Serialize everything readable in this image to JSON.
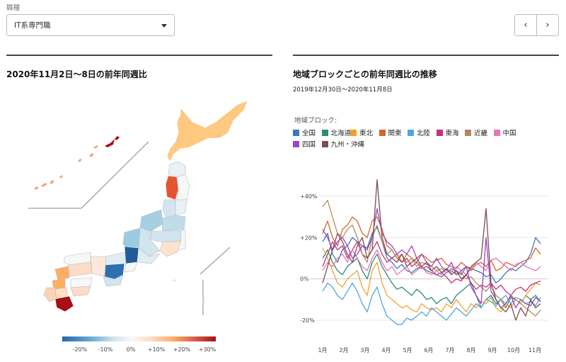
{
  "filter": {
    "label": "職種",
    "selected": "IT系専門職"
  },
  "pager": {
    "prev": "‹",
    "next": "›"
  },
  "map_panel": {
    "title": "2020年11月2日〜8日の前年同週比",
    "colorbar": {
      "ticks": [
        "-20%",
        "-10%",
        "0%",
        "+10%",
        "+20%",
        "+30%"
      ],
      "colors": [
        "#2166ac",
        "#67a9cf",
        "#d1e5f0",
        "#f7f7f7",
        "#fddbc7",
        "#fdae61",
        "#d6604d",
        "#a50f15"
      ]
    }
  },
  "chart_panel": {
    "title": "地域ブロックごとの前年同週比の推移",
    "subtitle": "2019年12月30日〜2020年11月8日",
    "legend_title": "地域ブロック:"
  },
  "chart_data": {
    "type": "line",
    "title": "地域ブロックごとの前年同週比の推移",
    "subtitle": "2019年12月30日〜2020年11月8日",
    "x_tick_labels": [
      "1月",
      "2月",
      "3月",
      "4月",
      "5月",
      "6月",
      "7月",
      "8月",
      "9月",
      "10月",
      "11月"
    ],
    "y_tick_labels": [
      "+40%",
      "+20%",
      "0%",
      "-20%"
    ],
    "y_ticks": [
      40,
      20,
      0,
      -20
    ],
    "ylim": [
      -30,
      50
    ],
    "grid": true,
    "legend_position": "top",
    "x_unit": "week index (0 = 2019-12-30, 44 = 2020-11-02)",
    "series": [
      {
        "name": "全国",
        "color": "#3c78b4",
        "values": [
          18,
          22,
          12,
          8,
          14,
          16,
          20,
          18,
          16,
          15,
          22,
          25,
          18,
          10,
          8,
          5,
          7,
          4,
          3,
          5,
          6,
          4,
          3,
          2,
          1,
          3,
          5,
          4,
          2,
          6,
          5,
          4,
          3,
          1,
          2,
          -2,
          0,
          3,
          5,
          4,
          6,
          8,
          12,
          20,
          17
        ]
      },
      {
        "name": "北海道",
        "color": "#2a8c7a",
        "values": [
          10,
          14,
          8,
          4,
          2,
          6,
          8,
          10,
          4,
          0,
          8,
          12,
          6,
          2,
          -2,
          -5,
          -4,
          -6,
          -8,
          -5,
          -7,
          -10,
          -9,
          -12,
          -10,
          -9,
          -12,
          -8,
          -6,
          -4,
          -2,
          -8,
          -14,
          -10,
          -8,
          -12,
          -10,
          -14,
          -9,
          -10,
          -12,
          -8,
          -10,
          -8,
          -11
        ]
      },
      {
        "name": "東北",
        "color": "#f0a32c",
        "values": [
          15,
          10,
          4,
          -2,
          -4,
          0,
          2,
          4,
          -4,
          -8,
          4,
          8,
          -2,
          -8,
          -10,
          -12,
          -14,
          -13,
          -15,
          -16,
          -12,
          -14,
          -15,
          -14,
          -16,
          -12,
          -14,
          -10,
          -13,
          -16,
          -12,
          -14,
          -11,
          -12,
          -9,
          -14,
          -16,
          -12,
          -14,
          -10,
          -12,
          -8,
          -5,
          -2,
          -3
        ]
      },
      {
        "name": "関東",
        "color": "#d9622b",
        "values": [
          22,
          28,
          20,
          16,
          24,
          26,
          30,
          28,
          22,
          20,
          28,
          30,
          24,
          16,
          14,
          10,
          8,
          12,
          10,
          8,
          12,
          10,
          8,
          9,
          10,
          7,
          6,
          5,
          8,
          6,
          4,
          7,
          8,
          6,
          9,
          4,
          5,
          8,
          7,
          6,
          8,
          9,
          10,
          15,
          12
        ]
      },
      {
        "name": "北陸",
        "color": "#4fa6dd",
        "values": [
          -6,
          -2,
          -4,
          -8,
          -10,
          -6,
          -2,
          -6,
          -12,
          -16,
          -8,
          -4,
          -12,
          -18,
          -20,
          -22,
          -22,
          -19,
          -20,
          -18,
          -16,
          -18,
          -14,
          -16,
          -18,
          -20,
          -17,
          -14,
          -16,
          -18,
          -15,
          -12,
          -14,
          -10,
          -11,
          -13,
          -10,
          -8,
          -12,
          -9,
          -10,
          -12,
          -11,
          -13,
          -9
        ]
      },
      {
        "name": "東海",
        "color": "#c8307a",
        "values": [
          6,
          12,
          18,
          14,
          16,
          10,
          14,
          18,
          12,
          10,
          14,
          18,
          12,
          8,
          10,
          12,
          8,
          10,
          6,
          8,
          5,
          6,
          4,
          2,
          3,
          1,
          -2,
          0,
          -1,
          2,
          -2,
          -5,
          -3,
          -4,
          -2,
          -5,
          -3,
          -6,
          -8,
          -5,
          -4,
          -6,
          -3,
          -2,
          -1
        ]
      },
      {
        "name": "近畿",
        "color": "#b08a5e",
        "values": [
          35,
          38,
          30,
          22,
          20,
          24,
          26,
          20,
          12,
          8,
          20,
          26,
          18,
          12,
          14,
          10,
          12,
          8,
          10,
          6,
          8,
          7,
          6,
          4,
          5,
          3,
          4,
          2,
          3,
          0,
          1,
          -2,
          -4,
          -6,
          -3,
          -8,
          -10,
          -12,
          -8,
          -10,
          -12,
          -14,
          -16,
          -18,
          -15
        ]
      },
      {
        "name": "中国",
        "color": "#e873b5",
        "values": [
          4,
          8,
          6,
          10,
          12,
          8,
          14,
          10,
          6,
          4,
          10,
          14,
          8,
          4,
          6,
          2,
          4,
          6,
          2,
          4,
          6,
          3,
          2,
          4,
          2,
          5,
          3,
          6,
          4,
          2,
          5,
          8,
          6,
          4,
          9,
          10,
          8,
          6,
          4,
          7,
          8,
          6,
          5,
          4,
          6
        ]
      },
      {
        "name": "四国",
        "color": "#9b45c8",
        "values": [
          24,
          20,
          14,
          18,
          20,
          16,
          10,
          12,
          16,
          14,
          20,
          34,
          22,
          18,
          16,
          12,
          14,
          12,
          16,
          10,
          12,
          8,
          6,
          10,
          6,
          4,
          8,
          2,
          4,
          6,
          -4,
          -8,
          -12,
          20,
          -6,
          -10,
          -14,
          -12,
          -8,
          -14,
          -10,
          -12,
          -13,
          -9,
          -11
        ]
      },
      {
        "name": "九州・沖縄",
        "color": "#7a4e52",
        "values": [
          -2,
          6,
          14,
          22,
          18,
          12,
          8,
          16,
          20,
          10,
          14,
          48,
          20,
          12,
          10,
          8,
          12,
          6,
          8,
          10,
          6,
          8,
          4,
          6,
          3,
          5,
          2,
          4,
          0,
          2,
          6,
          8,
          10,
          34,
          -2,
          -10,
          -14,
          -16,
          -12,
          -20,
          -14,
          -18,
          -10,
          -14,
          -12
        ]
      }
    ]
  }
}
